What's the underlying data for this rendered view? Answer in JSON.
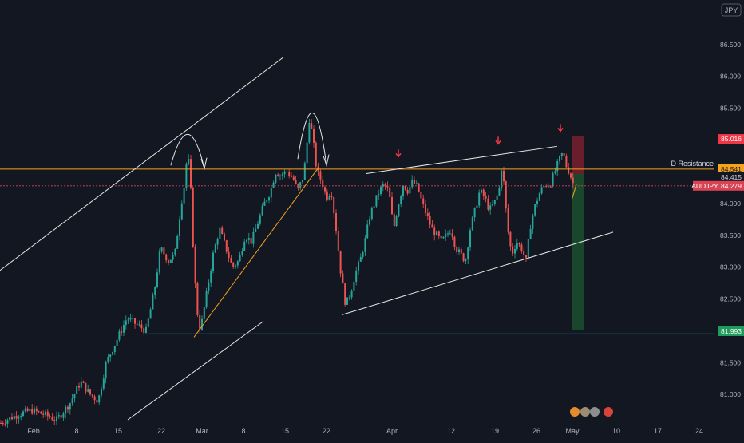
{
  "currency_badge": "JPY",
  "colors": {
    "background": "#131722",
    "bull": "#26a69a",
    "bear": "#ef5350",
    "resistance": "#f7a21b",
    "price_line": "#d94353",
    "support": "#2bbcd4",
    "trend_white": "#e7e7e7",
    "stop_zone": "#7a1f2b",
    "target_zone": "#1b4d2e",
    "arrow_red": "#f23645"
  },
  "chart_data": {
    "type": "candlestick",
    "symbol": "AUDJPY",
    "x_tick_labels": [
      "Feb",
      "8",
      "15",
      "22",
      "Mar",
      "8",
      "15",
      "22",
      "Apr",
      "12",
      "19",
      "26",
      "May",
      "10",
      "17",
      "24"
    ],
    "y_tick_labels": [
      "81.000",
      "81.500",
      "82.000",
      "82.500",
      "83.000",
      "83.500",
      "84.000",
      "85.500",
      "86.000",
      "86.500"
    ],
    "ylim": [
      80.55,
      87.2
    ],
    "price_labels": [
      {
        "id": "entry",
        "text": "85.016",
        "value": 85.016
      },
      {
        "id": "resistance",
        "text": "84.541",
        "value": 84.541
      },
      {
        "id": "current",
        "text": "84.415",
        "value": 84.415
      },
      {
        "id": "symbol",
        "text": "84.279",
        "value": 84.279,
        "prefix": "AUDJPY"
      },
      {
        "id": "target",
        "text": "81.993",
        "value": 81.993
      }
    ],
    "horizontal_levels": [
      {
        "name": "D Resistance",
        "value": 84.541
      },
      {
        "name": "support",
        "value": 81.95
      },
      {
        "name": "price",
        "value": 84.279
      }
    ],
    "candle_path": [
      [
        0,
        80.55
      ],
      [
        10,
        80.62
      ],
      [
        25,
        80.7
      ],
      [
        38,
        80.75
      ],
      [
        55,
        80.68
      ],
      [
        70,
        80.6
      ],
      [
        86,
        80.85
      ],
      [
        100,
        81.2
      ],
      [
        112,
        81.0
      ],
      [
        122,
        80.9
      ],
      [
        132,
        81.5
      ],
      [
        145,
        81.85
      ],
      [
        158,
        82.2
      ],
      [
        170,
        82.1
      ],
      [
        182,
        82.0
      ],
      [
        192,
        82.6
      ],
      [
        200,
        83.3
      ],
      [
        210,
        83.1
      ],
      [
        218,
        83.2
      ],
      [
        226,
        84.0
      ],
      [
        230,
        84.3
      ],
      [
        234,
        84.85
      ],
      [
        238,
        84.2
      ],
      [
        242,
        83.0
      ],
      [
        246,
        82.3
      ],
      [
        250,
        82.0
      ],
      [
        258,
        82.6
      ],
      [
        266,
        83.2
      ],
      [
        274,
        83.6
      ],
      [
        282,
        83.3
      ],
      [
        290,
        83.0
      ],
      [
        298,
        83.1
      ],
      [
        306,
        83.5
      ],
      [
        314,
        83.4
      ],
      [
        322,
        83.7
      ],
      [
        330,
        84.0
      ],
      [
        338,
        84.2
      ],
      [
        344,
        84.5
      ],
      [
        350,
        84.45
      ],
      [
        358,
        84.5
      ],
      [
        366,
        84.4
      ],
      [
        372,
        84.2
      ],
      [
        378,
        84.4
      ],
      [
        382,
        84.7
      ],
      [
        386,
        85.35
      ],
      [
        390,
        85.1
      ],
      [
        396,
        84.5
      ],
      [
        402,
        84.35
      ],
      [
        408,
        84.1
      ],
      [
        414,
        84.2
      ],
      [
        420,
        83.6
      ],
      [
        426,
        82.9
      ],
      [
        432,
        82.4
      ],
      [
        438,
        82.6
      ],
      [
        444,
        82.9
      ],
      [
        450,
        83.1
      ],
      [
        456,
        83.4
      ],
      [
        462,
        83.8
      ],
      [
        468,
        84.0
      ],
      [
        474,
        84.2
      ],
      [
        480,
        84.3
      ],
      [
        486,
        84.2
      ],
      [
        492,
        83.6
      ],
      [
        498,
        84.0
      ],
      [
        504,
        84.3
      ],
      [
        510,
        84.2
      ],
      [
        516,
        84.35
      ],
      [
        522,
        84.25
      ],
      [
        528,
        84.0
      ],
      [
        534,
        83.8
      ],
      [
        540,
        83.6
      ],
      [
        546,
        83.5
      ],
      [
        552,
        83.4
      ],
      [
        558,
        83.5
      ],
      [
        564,
        83.6
      ],
      [
        570,
        83.3
      ],
      [
        576,
        83.2
      ],
      [
        582,
        83.1
      ],
      [
        588,
        83.6
      ],
      [
        594,
        83.9
      ],
      [
        600,
        84.2
      ],
      [
        606,
        84.1
      ],
      [
        612,
        83.9
      ],
      [
        618,
        84.0
      ],
      [
        624,
        84.2
      ],
      [
        628,
        84.65
      ],
      [
        632,
        84.0
      ],
      [
        636,
        83.5
      ],
      [
        640,
        83.2
      ],
      [
        646,
        83.4
      ],
      [
        652,
        83.3
      ],
      [
        658,
        83.1
      ],
      [
        664,
        83.7
      ],
      [
        670,
        84.0
      ],
      [
        676,
        84.2
      ],
      [
        682,
        84.3
      ],
      [
        688,
        84.3
      ],
      [
        694,
        84.5
      ],
      [
        700,
        84.7
      ],
      [
        704,
        84.8
      ],
      [
        708,
        84.6
      ],
      [
        712,
        84.5
      ],
      [
        716,
        84.35
      ],
      [
        718,
        84.28
      ]
    ],
    "annotations": [
      {
        "type": "arrow",
        "color": "red",
        "at": [
          499,
          84.75
        ]
      },
      {
        "type": "arrow",
        "color": "red",
        "at": [
          624,
          84.95
        ]
      },
      {
        "type": "arrow",
        "color": "red",
        "at": [
          702,
          85.15
        ]
      },
      {
        "type": "curved-arrow",
        "peak": "first-top"
      },
      {
        "type": "curved-arrow",
        "peak": "head"
      }
    ]
  },
  "bottom_icons": [
    "flag-icon",
    "news-icon",
    "dividend-icon",
    "earnings-icon"
  ]
}
